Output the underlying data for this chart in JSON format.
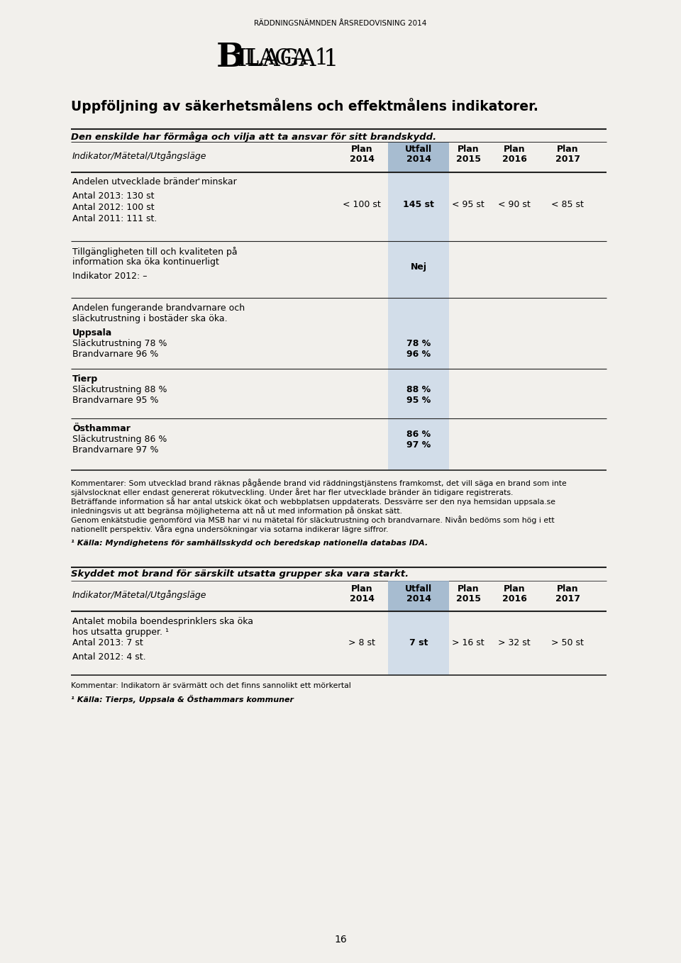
{
  "page_title": "RÄDDNINGSNÄMNDEN ÅRSREDOVISNING 2014",
  "section_title": "Uppföljning av säkerhetsmålens och effektmålens indikatorer.",
  "table1_italic_header": "Den enskilde har förmåga och vilja att ta ansvar för sitt brandskydd.",
  "utfall_col_light": "#c5d5e8",
  "utfall_col_dark": "#9ab3cc",
  "background_color": "#f2f0ec",
  "page_number": "16",
  "comment1": [
    "Kommentarer: Som utvecklad brand räknas pågående brand vid räddningstjänstens framkomst, det vill säga en brand som inte",
    "självslocknat eller endast genererat rökutveckling. Under året har fler utvecklade bränder än tidigare registrerats.",
    "Beträffande information så har antal utskick ökat och webbplatsen uppdaterats. Dessvärre ser den nya hemsidan uppsala.se",
    "inledningsvis ut att begränsa möjligheterna att nå ut med information på önskat sätt.",
    "Genom enkätstudie genomförd via MSB har vi nu mätetal för släckutrustning och brandvarnare. Nivån bedöms som hög i ett",
    "nationellt perspektiv. Våra egna undersökningar via sotarna indikerar lägre siffror."
  ],
  "footnote1": "¹ Källa: Myndighetens för samhällsskydd och beredskap nationella databas IDA.",
  "table2_italic_header": "Skyddet mot brand för särskilt utsatta grupper ska vara starkt.",
  "comment2": "Kommentar: Indikatorn är svärmätt och det finns sannolikt ett mörkertal",
  "footnote2": "¹ Källa: Tierps, Uppsala & Östhammars kommuner"
}
